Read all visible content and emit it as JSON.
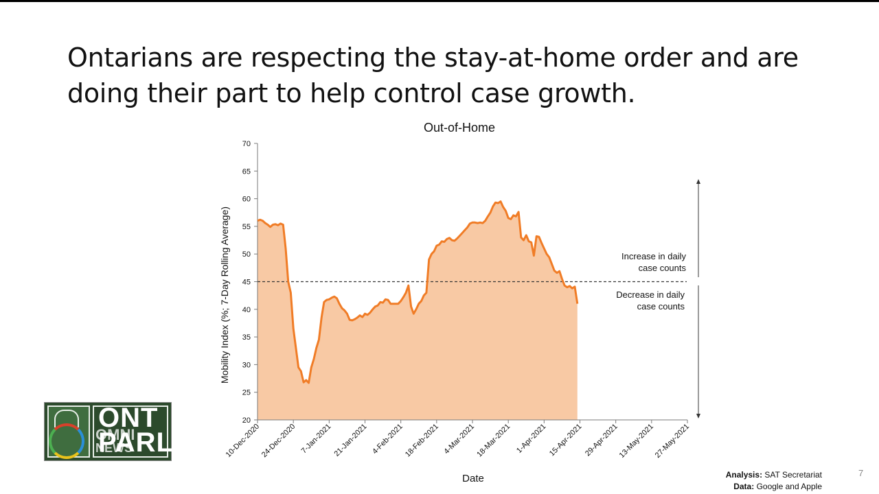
{
  "slide": {
    "title": "Ontarians are respecting the stay-at-home order and are doing their part to help control case growth.",
    "page_number": "7",
    "analysis_label": "Analysis:",
    "analysis_value": "SAT Secretariat",
    "data_label": "Data:",
    "data_value": "Google and Apple"
  },
  "logo": {
    "text_top": "ONT",
    "text_bottom": "PARL",
    "overlay_top": "OMNI",
    "overlay_bottom": "NEWS"
  },
  "colors": {
    "line": "#f07c26",
    "fill": "#f8c9a4",
    "reference": "#333333",
    "axis": "#7a7a7a",
    "text": "#111111"
  },
  "chart_data": {
    "type": "area",
    "title": "Out-of-Home",
    "xlabel": "Date",
    "ylabel": "Mobility Index (%; 7-Day Rolling Average)",
    "ylim": [
      20,
      70
    ],
    "yticks": [
      20,
      25,
      30,
      35,
      40,
      45,
      50,
      55,
      60,
      65,
      70
    ],
    "x_tick_labels": [
      "10-Dec-2020",
      "24-Dec-2020",
      "7-Jan-2021",
      "21-Jan-2021",
      "4-Feb-2021",
      "18-Feb-2021",
      "4-Mar-2021",
      "18-Mar-2021",
      "1-Apr-2021",
      "15-Apr-2021",
      "29-Apr-2021",
      "13-May-2021",
      "27-May-2021"
    ],
    "x_range_days": [
      0,
      168
    ],
    "reference_line": 45,
    "annotation_increase": "Increase in daily case counts",
    "annotation_increase_lines": [
      "Increase in daily",
      "case counts"
    ],
    "annotation_decrease": "Decrease in daily case counts",
    "annotation_decrease_lines": [
      "Decrease in daily",
      "case counts"
    ],
    "series": [
      {
        "name": "Out-of-Home",
        "points": [
          [
            0,
            56
          ],
          [
            1,
            56.2
          ],
          [
            2,
            56
          ],
          [
            3,
            55.6
          ],
          [
            4,
            55.3
          ],
          [
            5,
            54.9
          ],
          [
            6,
            55.3
          ],
          [
            7,
            55.4
          ],
          [
            8,
            55.2
          ],
          [
            9,
            55.5
          ],
          [
            10,
            55.3
          ],
          [
            11,
            51
          ],
          [
            12,
            45
          ],
          [
            13,
            43
          ],
          [
            14,
            36.5
          ],
          [
            15,
            33
          ],
          [
            16,
            29.5
          ],
          [
            17,
            28.8
          ],
          [
            18,
            26.8
          ],
          [
            19,
            27.2
          ],
          [
            20,
            26.7
          ],
          [
            21,
            29.5
          ],
          [
            22,
            31
          ],
          [
            23,
            33
          ],
          [
            24,
            34.5
          ],
          [
            25,
            38.5
          ],
          [
            26,
            41.3
          ],
          [
            27,
            41.7
          ],
          [
            28,
            41.8
          ],
          [
            29,
            42.1
          ],
          [
            30,
            42.3
          ],
          [
            31,
            42
          ],
          [
            32,
            41
          ],
          [
            33,
            40.2
          ],
          [
            34,
            39.8
          ],
          [
            35,
            39.2
          ],
          [
            36,
            38.1
          ],
          [
            37,
            38
          ],
          [
            38,
            38.2
          ],
          [
            39,
            38.5
          ],
          [
            40,
            38.9
          ],
          [
            41,
            38.6
          ],
          [
            42,
            39.2
          ],
          [
            43,
            39
          ],
          [
            44,
            39.4
          ],
          [
            45,
            40
          ],
          [
            46,
            40.5
          ],
          [
            47,
            40.7
          ],
          [
            48,
            41.3
          ],
          [
            49,
            41.2
          ],
          [
            50,
            41.8
          ],
          [
            51,
            41.7
          ],
          [
            52,
            41
          ],
          [
            53,
            41
          ],
          [
            54,
            41
          ],
          [
            55,
            41
          ],
          [
            56,
            41.5
          ],
          [
            57,
            42.2
          ],
          [
            58,
            43
          ],
          [
            59,
            44.3
          ],
          [
            60,
            40.5
          ],
          [
            61,
            39.2
          ],
          [
            62,
            40
          ],
          [
            63,
            41
          ],
          [
            64,
            41.5
          ],
          [
            65,
            42.5
          ],
          [
            66,
            43
          ],
          [
            67,
            49
          ],
          [
            68,
            50
          ],
          [
            69,
            50.5
          ],
          [
            70,
            51.5
          ],
          [
            71,
            51.7
          ],
          [
            72,
            52.3
          ],
          [
            73,
            52.2
          ],
          [
            74,
            52.7
          ],
          [
            75,
            52.9
          ],
          [
            76,
            52.5
          ],
          [
            77,
            52.4
          ],
          [
            78,
            52.8
          ],
          [
            79,
            53.3
          ],
          [
            80,
            53.8
          ],
          [
            81,
            54.3
          ],
          [
            82,
            54.8
          ],
          [
            83,
            55.5
          ],
          [
            84,
            55.7
          ],
          [
            85,
            55.7
          ],
          [
            86,
            55.6
          ],
          [
            87,
            55.7
          ],
          [
            88,
            55.6
          ],
          [
            89,
            56
          ],
          [
            90,
            56.8
          ],
          [
            91,
            57.5
          ],
          [
            92,
            58.6
          ],
          [
            93,
            59.3
          ],
          [
            94,
            59.2
          ],
          [
            95,
            59.5
          ],
          [
            96,
            58.5
          ],
          [
            97,
            57.8
          ],
          [
            98,
            56.5
          ],
          [
            99,
            56.3
          ],
          [
            100,
            57
          ],
          [
            101,
            56.8
          ],
          [
            102,
            57.6
          ],
          [
            103,
            53
          ],
          [
            104,
            52.5
          ],
          [
            105,
            53.4
          ],
          [
            106,
            52.3
          ],
          [
            107,
            52.1
          ],
          [
            108,
            49.7
          ],
          [
            109,
            53.2
          ],
          [
            110,
            53.1
          ],
          [
            111,
            52
          ],
          [
            112,
            51
          ],
          [
            113,
            50
          ],
          [
            114,
            49.4
          ],
          [
            115,
            48.2
          ],
          [
            116,
            47
          ],
          [
            117,
            46.6
          ],
          [
            118,
            46.9
          ],
          [
            119,
            45.5
          ],
          [
            120,
            44.3
          ],
          [
            121,
            44
          ],
          [
            122,
            44.2
          ],
          [
            123,
            43.8
          ],
          [
            124,
            44.1
          ],
          [
            125,
            41
          ]
        ]
      }
    ]
  }
}
